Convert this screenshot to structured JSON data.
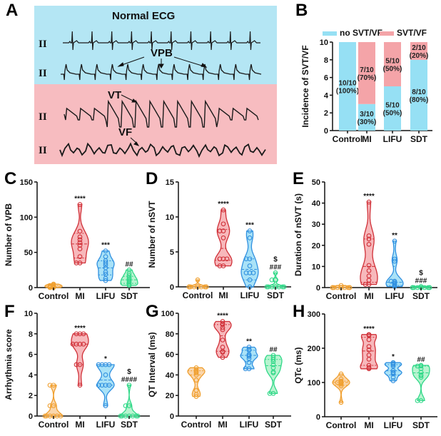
{
  "figure": {
    "panel_a": {
      "label": "A",
      "title": "Normal ECG",
      "lead_label": "II",
      "annotations": [
        "VPB",
        "VT",
        "VF"
      ],
      "colors": {
        "normal_bg": "#b4e6f4",
        "arrhythmia_bg": "#f7bcc0"
      },
      "traces": [
        "normal",
        "vpb",
        "vt",
        "vf"
      ]
    },
    "group_colors": {
      "Control": {
        "stroke": "#f0a030",
        "fill": "#f8c890"
      },
      "MI": {
        "stroke": "#d03038",
        "fill": "#f4a0a4"
      },
      "LIFU": {
        "stroke": "#3090e0",
        "fill": "#8cd8f4"
      },
      "SDT": {
        "stroke": "#30d888",
        "fill": "#a0f0c0"
      }
    }
  },
  "chart_data": [
    {
      "panel": "B",
      "type": "bar",
      "stacked": true,
      "title": "",
      "xlabel": "",
      "ylabel": "Incidence of SVT/VF",
      "ylim": [
        0,
        10
      ],
      "yticks": [
        0,
        2,
        4,
        6,
        8,
        10
      ],
      "categories": [
        "Control",
        "MI",
        "LIFU",
        "SDT"
      ],
      "legend": {
        "position": "top",
        "entries": [
          "no SVT/VF",
          "SVT/VF"
        ]
      },
      "series": [
        {
          "name": "no SVT/VF",
          "color": "#96e0f4",
          "values": [
            10,
            3,
            5,
            8
          ],
          "labels": [
            "10/10\n(100%)",
            "3/10\n(30%)",
            "5/10\n(50%)",
            "8/10\n(80%)"
          ]
        },
        {
          "name": "SVT/VF",
          "color": "#f4a4a8",
          "values": [
            0,
            7,
            5,
            2
          ],
          "labels": [
            "",
            "7/10\n(70%)",
            "5/10\n(50%)",
            "2/10\n(20%)"
          ]
        }
      ]
    },
    {
      "panel": "C",
      "type": "violin",
      "ylabel": "Number of VPB",
      "ylim": [
        0,
        150
      ],
      "yticks": [
        0,
        50,
        100,
        150
      ],
      "categories": [
        "Control",
        "MI",
        "LIFU",
        "SDT"
      ],
      "significance": [
        "",
        "****",
        "***",
        "##"
      ],
      "points": [
        [
          0,
          0,
          1,
          1,
          2,
          2,
          3,
          3,
          4,
          5
        ],
        [
          35,
          35,
          44,
          55,
          60,
          64,
          68,
          72,
          80,
          118
        ],
        [
          10,
          13,
          19,
          22,
          28,
          32,
          35,
          38,
          44,
          52
        ],
        [
          3,
          4,
          6,
          8,
          10,
          12,
          14,
          17,
          20,
          25
        ]
      ],
      "quartiles": [
        [
          0,
          1,
          3
        ],
        [
          42,
          62,
          77
        ],
        [
          18,
          28,
          38
        ],
        [
          6,
          11,
          16
        ]
      ]
    },
    {
      "panel": "D",
      "type": "violin",
      "ylabel": "Number of nSVT",
      "ylim": [
        0,
        15
      ],
      "yticks": [
        0,
        5,
        10,
        15
      ],
      "categories": [
        "Control",
        "MI",
        "LIFU",
        "SDT"
      ],
      "significance": [
        "",
        "****",
        "***",
        "$\n###"
      ],
      "points": [
        [
          0,
          0,
          0,
          0,
          0,
          0,
          0,
          0,
          0,
          1
        ],
        [
          3,
          3,
          4,
          4,
          4,
          7,
          8,
          8,
          9,
          11
        ],
        [
          0,
          1,
          2,
          2,
          2,
          3,
          4,
          4,
          7,
          8
        ],
        [
          0,
          0,
          0,
          0,
          0,
          0,
          0,
          1,
          1,
          2
        ]
      ],
      "quartiles": [
        [
          0,
          0,
          0
        ],
        [
          3.8,
          5.5,
          8.2
        ],
        [
          1,
          2.5,
          4
        ],
        [
          0,
          0,
          0.8
        ]
      ]
    },
    {
      "panel": "E",
      "type": "violin",
      "ylabel": "Duration of nSVT (s)",
      "ylim": [
        0,
        50
      ],
      "yticks": [
        0,
        10,
        20,
        30,
        40,
        50
      ],
      "categories": [
        "Control",
        "MI",
        "LIFU",
        "SDT"
      ],
      "significance": [
        "",
        "****",
        "**",
        "$\n###"
      ],
      "points": [
        [
          0,
          0,
          0,
          0,
          0,
          0,
          0,
          0,
          0,
          1
        ],
        [
          1.5,
          1.5,
          3.5,
          5.5,
          8,
          10.5,
          20.5,
          23,
          24.5,
          40.5
        ],
        [
          0.5,
          1,
          1.5,
          2,
          2.5,
          3,
          3,
          12.5,
          13.5,
          22
        ],
        [
          0,
          0,
          0,
          0,
          0,
          0,
          0,
          0,
          0,
          0.5
        ]
      ],
      "quartiles": [
        [
          0,
          0,
          0
        ],
        [
          2.5,
          10,
          23
        ],
        [
          1,
          2.5,
          10
        ],
        [
          0,
          0,
          0
        ]
      ]
    },
    {
      "panel": "F",
      "type": "violin",
      "ylabel": "Arrhythmia score",
      "ylim": [
        0,
        10
      ],
      "yticks": [
        0,
        2,
        4,
        6,
        8,
        10
      ],
      "categories": [
        "Control",
        "MI",
        "LIFU",
        "SDT"
      ],
      "significance": [
        "",
        "****",
        "*",
        "$\n####"
      ],
      "points": [
        [
          0,
          0,
          0,
          0,
          0,
          0,
          1,
          1,
          3,
          3
        ],
        [
          3,
          5,
          5,
          7,
          7,
          7,
          7,
          8,
          8,
          8
        ],
        [
          1,
          3,
          3,
          3,
          3,
          4,
          5,
          5,
          5,
          5
        ],
        [
          0,
          0,
          0,
          0,
          0,
          0,
          0,
          1,
          1,
          3
        ]
      ],
      "quartiles": [
        [
          0,
          0,
          1
        ],
        [
          5,
          7,
          8
        ],
        [
          3,
          3.5,
          5
        ],
        [
          0,
          0,
          1
        ]
      ]
    },
    {
      "panel": "G",
      "type": "violin",
      "ylabel": "QT Interval (ms)",
      "ylim": [
        0,
        100
      ],
      "yticks": [
        0,
        20,
        40,
        60,
        80,
        100
      ],
      "categories": [
        "Control",
        "MI",
        "LIFU",
        "SDT"
      ],
      "significance": [
        "",
        "****",
        "**",
        "##"
      ],
      "points": [
        [
          19,
          21,
          25,
          35,
          40,
          42,
          43,
          44,
          45,
          47
        ],
        [
          57,
          62,
          63,
          67,
          74,
          84,
          86,
          89,
          90,
          92
        ],
        [
          46,
          46,
          52,
          56,
          58,
          59,
          60,
          64,
          65,
          67
        ],
        [
          22,
          22,
          42,
          43,
          47,
          50,
          53,
          55,
          57,
          59
        ]
      ],
      "quartiles": [
        [
          26,
          40,
          44
        ],
        [
          63,
          78,
          89
        ],
        [
          53,
          59,
          64
        ],
        [
          35,
          49,
          55
        ]
      ]
    },
    {
      "panel": "H",
      "type": "violin",
      "ylabel": "QTc (ms)",
      "ylim": [
        0,
        300
      ],
      "yticks": [
        0,
        100,
        200,
        300
      ],
      "categories": [
        "Control",
        "MI",
        "LIFU",
        "SDT"
      ],
      "significance": [
        "",
        "****",
        "*",
        "##"
      ],
      "points": [
        [
          42,
          90,
          95,
          98,
          100,
          100,
          102,
          104,
          110,
          125
        ],
        [
          140,
          143,
          150,
          168,
          180,
          195,
          205,
          225,
          238,
          240
        ],
        [
          105,
          115,
          125,
          128,
          130,
          135,
          148,
          152,
          155,
          158
        ],
        [
          47,
          47,
          115,
          120,
          122,
          130,
          140,
          148,
          148,
          150
        ]
      ],
      "quartiles": [
        [
          92,
          100,
          104
        ],
        [
          150,
          192,
          232
        ],
        [
          122,
          134,
          152
        ],
        [
          90,
          128,
          148
        ]
      ]
    }
  ]
}
